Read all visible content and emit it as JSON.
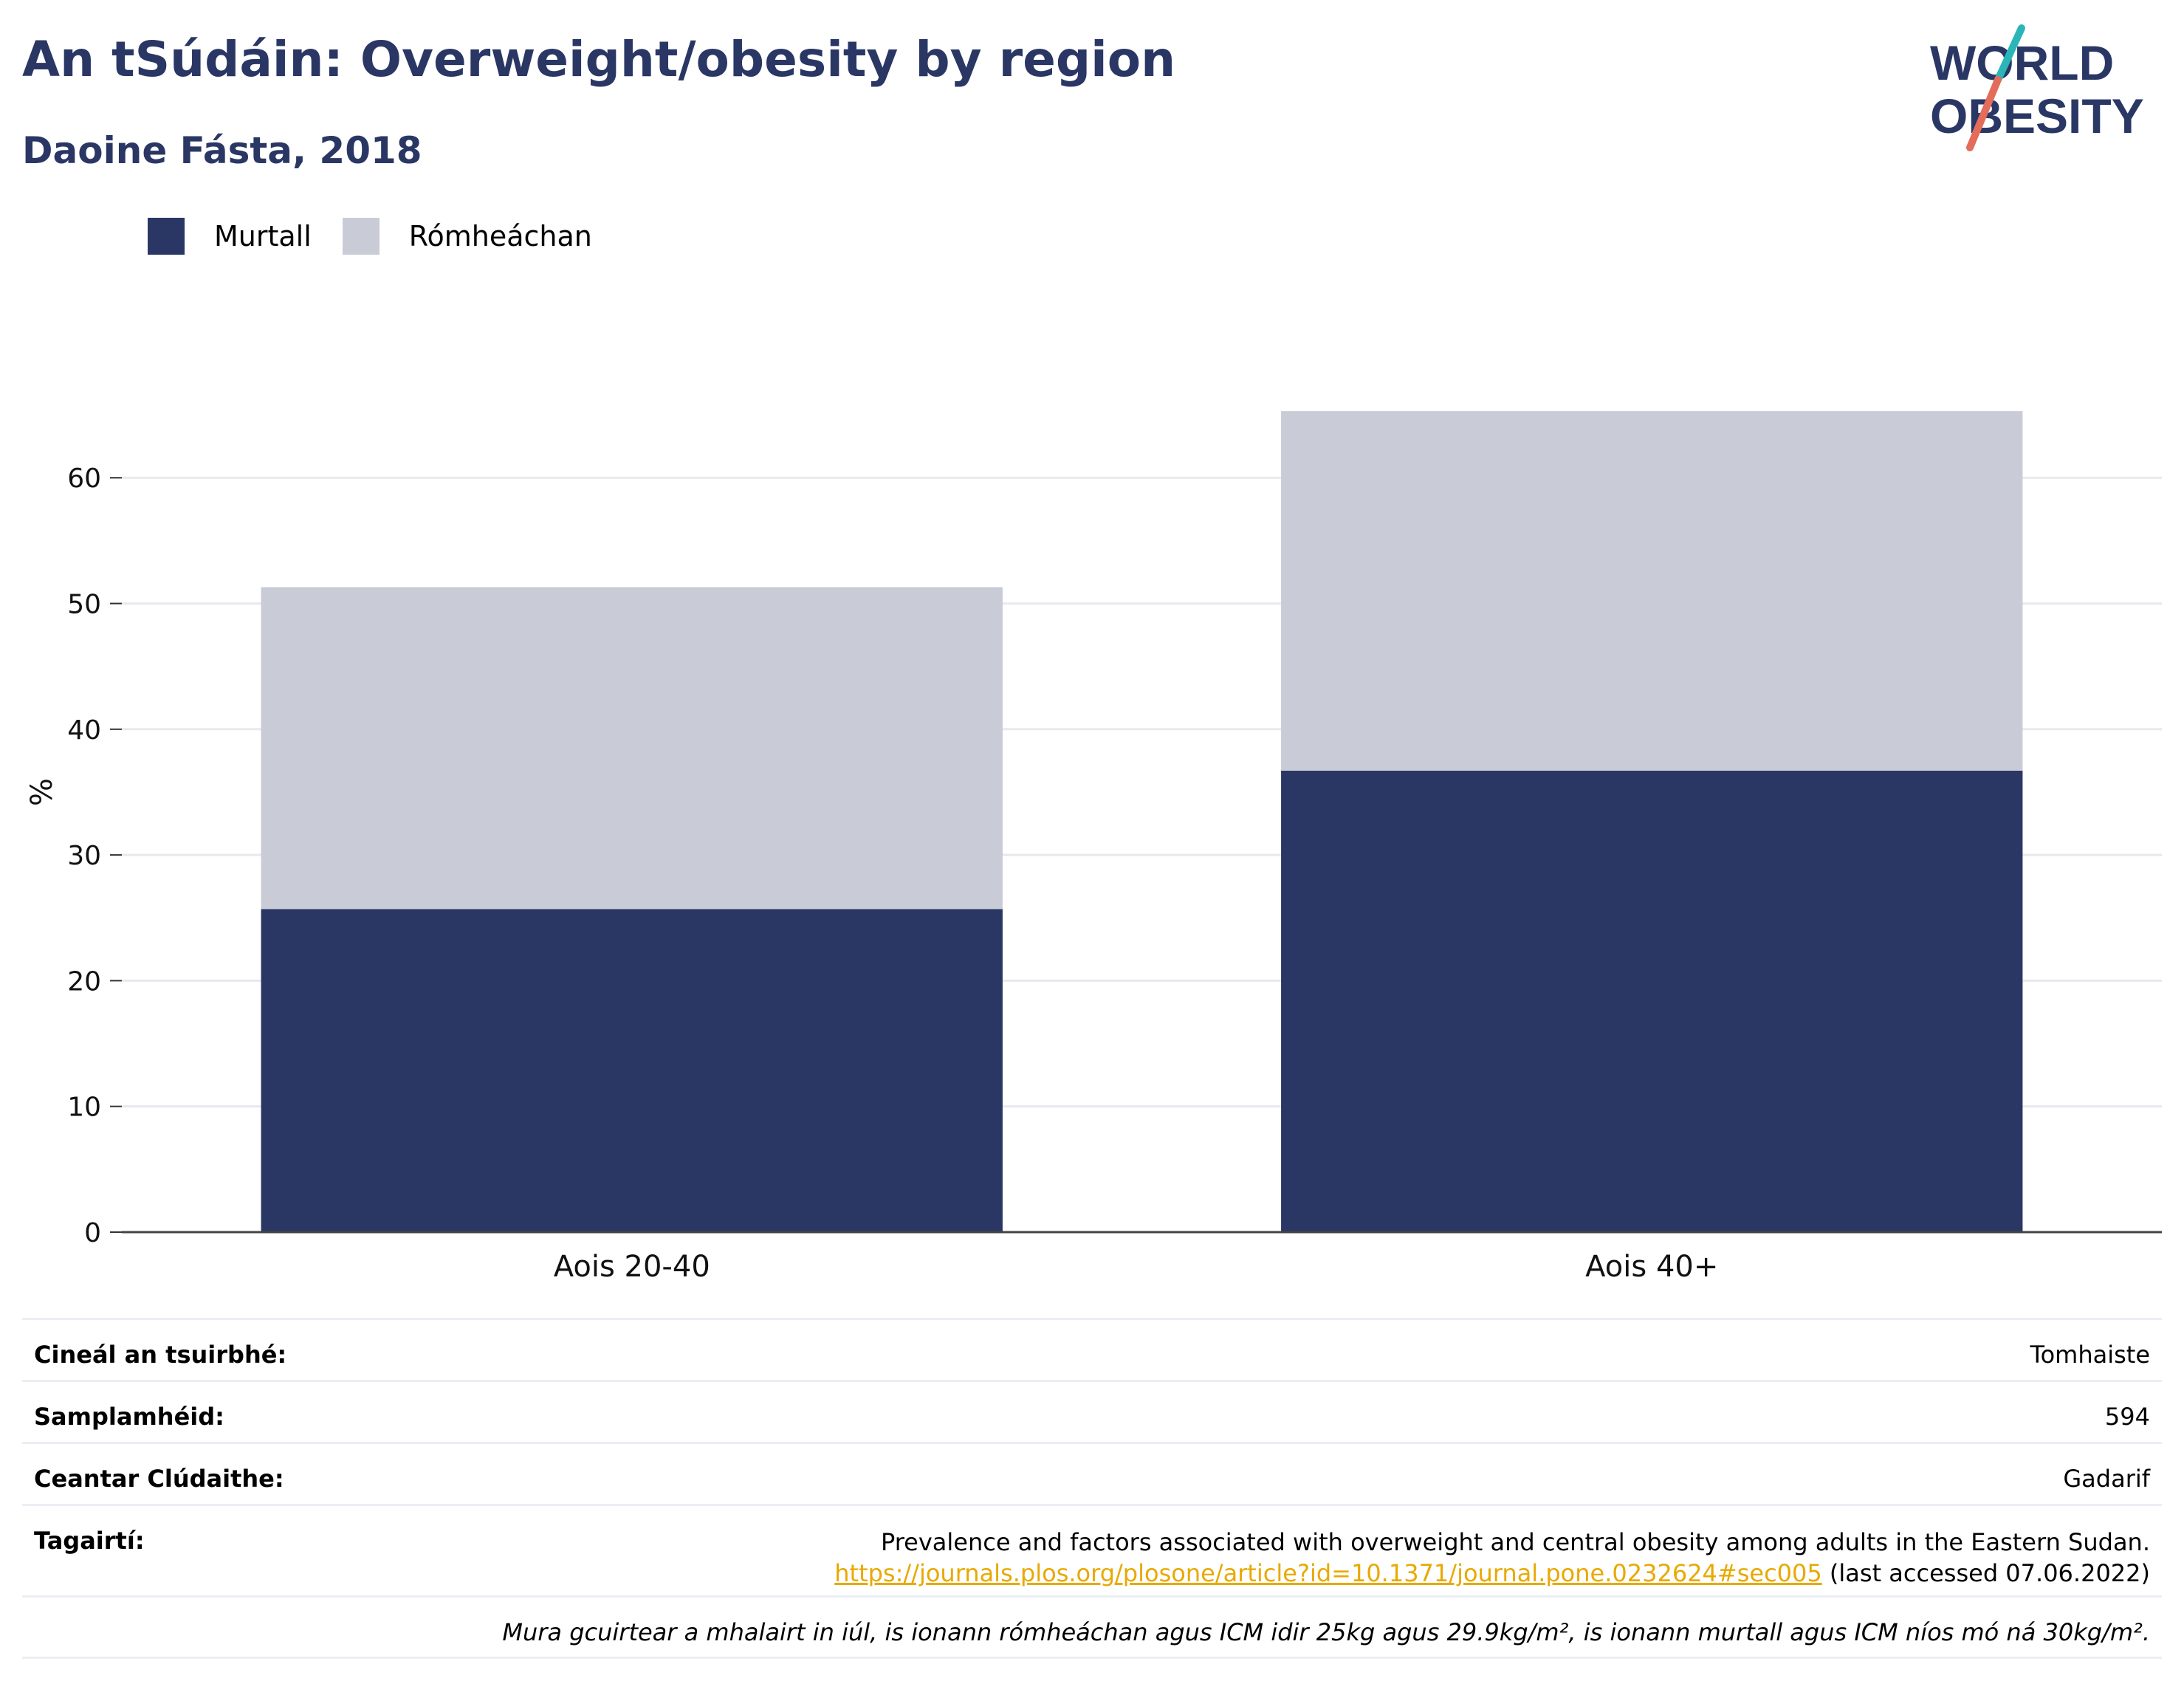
{
  "header": {
    "title": "An tSúdáin: Overweight/obesity by region",
    "subtitle": "Daoine Fásta, 2018",
    "logo_line1": "WORLD",
    "logo_line2": "OBESITY"
  },
  "legend": {
    "items": [
      {
        "label": "Murtall",
        "color": "#2a3765"
      },
      {
        "label": "Rómheáchan",
        "color": "#c9ccd7"
      }
    ]
  },
  "chart_data": {
    "type": "bar",
    "stacked": true,
    "categories": [
      "Aois 20-40",
      "Aois 40+"
    ],
    "series": [
      {
        "name": "Murtall",
        "values": [
          25.7,
          36.7
        ],
        "color": "#2a3765"
      },
      {
        "name": "Rómheáchan",
        "values": [
          25.6,
          28.6
        ],
        "color": "#c9ccd7"
      }
    ],
    "ylabel": "%",
    "ylim": [
      0,
      70
    ],
    "yticks": [
      0,
      10,
      20,
      30,
      40,
      50,
      60
    ],
    "grid": true,
    "legend_position": "top-left"
  },
  "info": {
    "survey_type_label": "Cineál an tsuirbhé:",
    "survey_type_value": "Tomhaiste",
    "sample_size_label": "Samplamhéid:",
    "sample_size_value": "594",
    "area_label": "Ceantar Clúdaithe:",
    "area_value": "Gadarif",
    "references_label": "Tagairtí:",
    "reference_text": "Prevalence and factors associated with overweight and central obesity among adults in the Eastern Sudan.",
    "reference_url": "https://journals.plos.org/plosone/article?id=10.1371/journal.pone.0232624#sec005",
    "reference_accessed": " (last accessed 07.06.2022)",
    "note": "Mura gcuirtear a mhalairt in iúl, is ionann rómheáchan agus ICM idir 25kg agus 29.9kg/m², is ionann murtall agus ICM níos mó ná 30kg/m²."
  },
  "colors": {
    "title": "#2a3765",
    "logo_teal": "#2bb5b8",
    "logo_coral": "#e36c5b",
    "link": "#e8a900"
  }
}
